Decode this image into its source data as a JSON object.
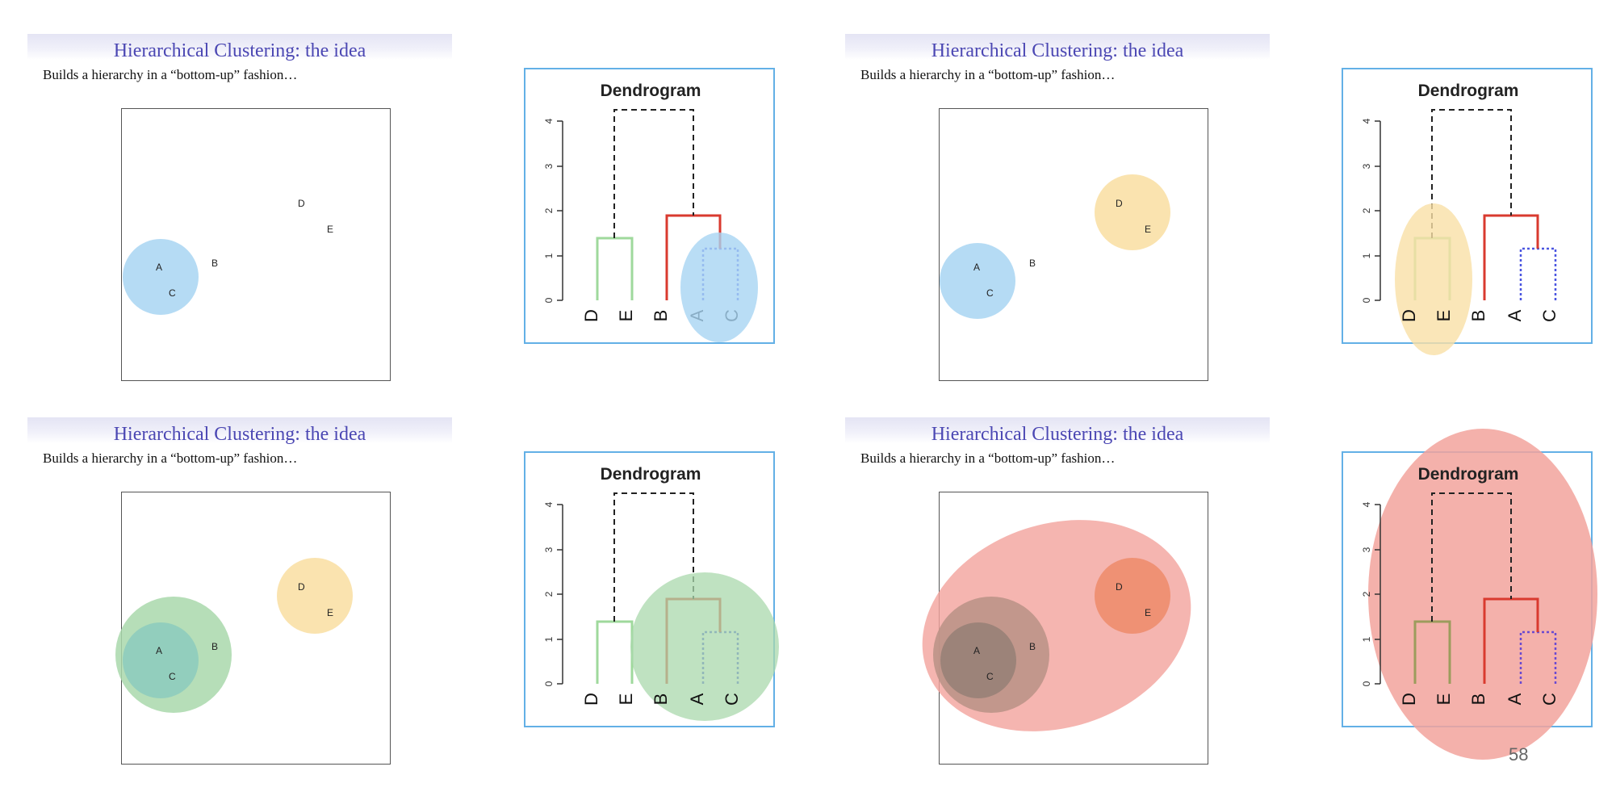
{
  "slide": {
    "title": "Hierarchical Clustering: the idea",
    "subtitle": "Builds a hierarchy in a “bottom-up” fashion…"
  },
  "dendrogram": {
    "title": "Dendrogram",
    "y_ticks": [
      "0",
      "1",
      "2",
      "3",
      "4"
    ],
    "leaf_labels": [
      "D",
      "E",
      "B",
      "A",
      "C"
    ]
  },
  "points": [
    "A",
    "B",
    "C",
    "D",
    "E"
  ],
  "colors": {
    "title_blue": "#4b47b3",
    "cluster_blue": "#a8d5f2",
    "cluster_yellow": "#f9e0a6",
    "cluster_green": "#a9d8ac",
    "cluster_red": "#f2a39c",
    "branch_green": "#9fd99c",
    "branch_red": "#d93a2f",
    "branch_blue": "#4a55e0",
    "frame_blue": "#63b0e6"
  },
  "page_number": "58"
}
